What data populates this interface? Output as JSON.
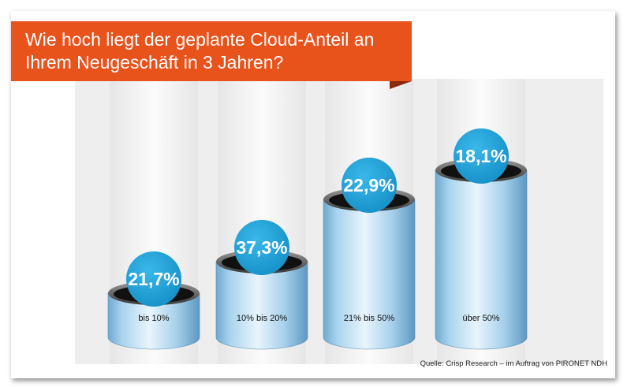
{
  "chart_data": {
    "type": "bar",
    "title": "Wie hoch liegt der geplante Cloud-Anteil an Ihrem Neugeschäft in 3 Jahren?",
    "categories": [
      "bis 10%",
      "10% bis 20%",
      "21% bis 50%",
      "über 50%"
    ],
    "values": [
      21.7,
      37.3,
      22.9,
      18.1
    ],
    "value_labels": [
      "21,7%",
      "37,3%",
      "22,9%",
      "18,1%"
    ],
    "unit": "%",
    "colors": {
      "banner": "#e8521b",
      "banner_fold": "#8b2a0b",
      "cylinder": "#8fc4e4",
      "bubble": "#1aa3dc",
      "column_bg": "#f1f1f1"
    }
  },
  "source": "Quelle: Crisp Research – im Auftrag von PIRONET NDH"
}
